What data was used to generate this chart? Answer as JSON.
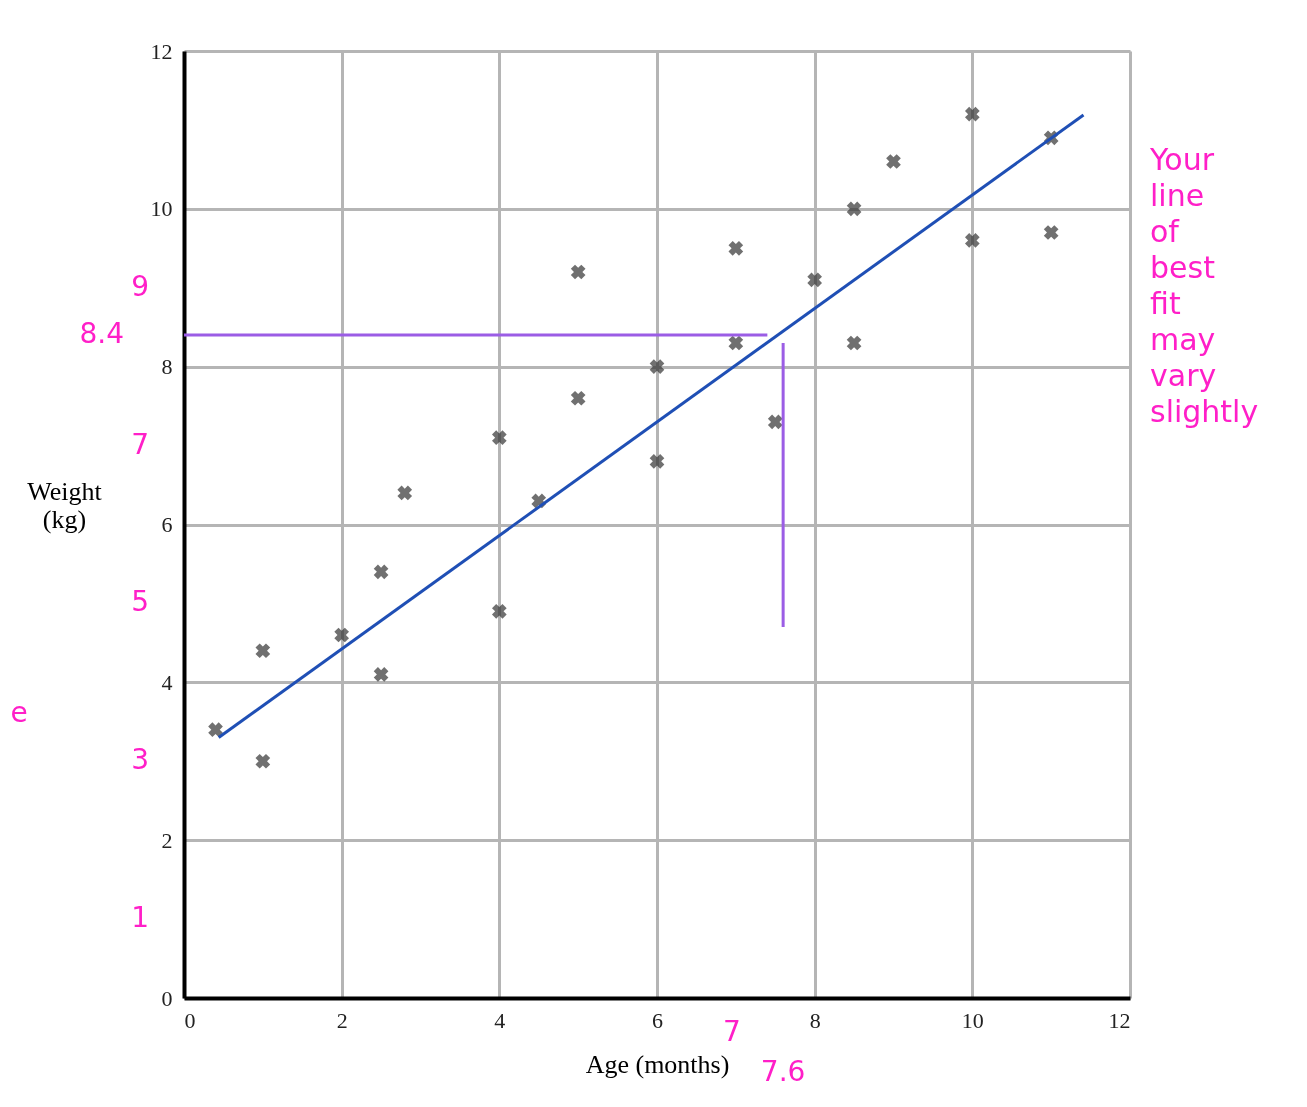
{
  "chart_data": {
    "type": "scatter",
    "xlabel": "Age (months)",
    "ylabel": "Weight (kg)",
    "xlim": [
      0,
      12
    ],
    "ylim": [
      0,
      12
    ],
    "xticks": [
      0,
      2,
      4,
      6,
      8,
      10,
      12
    ],
    "yticks": [
      0,
      2,
      4,
      6,
      8,
      10,
      12
    ],
    "grid": true,
    "series": [
      {
        "marker": "cross",
        "color": "#333333",
        "x": [
          0.4,
          1,
          1,
          2,
          2.5,
          2.5,
          2.8,
          4,
          4,
          4.5,
          5,
          5,
          6,
          6,
          7,
          7,
          7.5,
          8,
          8.5,
          8.5,
          9,
          10,
          10,
          11,
          11
        ],
        "values": [
          3.4,
          4.4,
          3,
          4.6,
          5.4,
          4.1,
          6.4,
          7.1,
          4.9,
          6.3,
          9.2,
          7.6,
          8,
          6.8,
          9.5,
          8.3,
          7.3,
          9.1,
          10,
          8.3,
          10.6,
          11.2,
          9.6,
          10.9,
          9.7
        ]
      },
      {
        "type": "line",
        "color": "#1f4fb5",
        "x": [
          0.44,
          11.41
        ],
        "values": [
          3.3,
          11.19
        ]
      },
      {
        "type": "line",
        "color": "#9b5de5",
        "x": [
          0,
          7.4
        ],
        "values": [
          8.4,
          8.4
        ]
      },
      {
        "type": "line",
        "color": "#9b5de5",
        "x": [
          7.6,
          7.6
        ],
        "values": [
          8.3,
          4.7
        ]
      }
    ],
    "annotations": [
      {
        "text": "8.4",
        "x": 0,
        "y": 8.4
      },
      "9",
      "7",
      "5",
      "3",
      "1",
      "7",
      "7.6",
      "Your line of best fit may vary slightly",
      "e"
    ]
  }
}
